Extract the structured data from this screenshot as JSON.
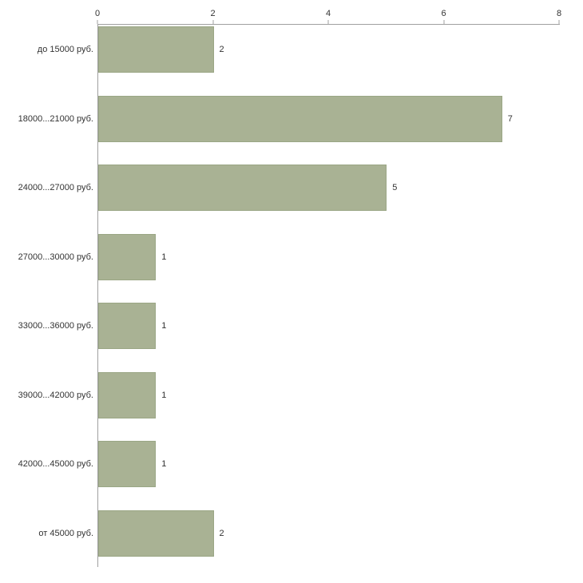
{
  "chart_data": {
    "type": "bar",
    "orientation": "horizontal",
    "title": "",
    "xlabel": "",
    "ylabel": "",
    "categories": [
      "до 15000 руб.",
      "18000...21000 руб.",
      "24000...27000 руб.",
      "27000...30000 руб.",
      "33000...36000 руб.",
      "39000...42000 руб.",
      "42000...45000 руб.",
      "от 45000 руб."
    ],
    "values": [
      2,
      7,
      5,
      1,
      1,
      1,
      1,
      2
    ],
    "value_labels": [
      "2",
      "7",
      "5",
      "1",
      "1",
      "1",
      "1",
      "2"
    ],
    "xlim": [
      0,
      8
    ],
    "x_ticks": [
      "0",
      "2",
      "4",
      "6",
      "8"
    ],
    "x_tick_values": [
      0,
      2,
      4,
      6,
      8
    ],
    "grid": false,
    "legend": false,
    "axis_position": "top",
    "bar_color": "#a9b294",
    "bar_border_color": "#9aa685",
    "axis_color": "#a0a0a0",
    "text_color": "#333333",
    "background_color": "#ffffff"
  }
}
